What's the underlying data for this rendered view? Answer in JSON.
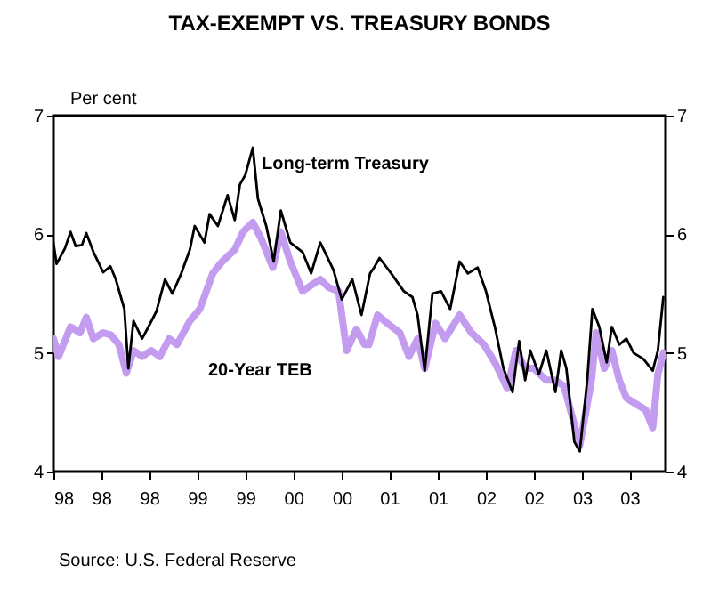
{
  "chart_data": {
    "type": "line",
    "title": "TAX-EXEMPT VS. TREASURY BONDS",
    "ylabel": "Per cent",
    "annotations": [
      "Source: U.S. Federal Reserve"
    ],
    "legend": false,
    "grid": false,
    "xlim": [
      "1998-01-01",
      "2003-11-11"
    ],
    "ylim": [
      4,
      7
    ],
    "yticks": [
      4,
      5,
      6,
      7
    ],
    "y2lim": [
      4,
      7
    ],
    "y2ticks": [
      4,
      5,
      6,
      7
    ],
    "xticks": [
      {
        "value": "1998-01-01",
        "label": "98"
      },
      {
        "value": "1998-06-17",
        "label": "98"
      },
      {
        "value": "1998-12-02",
        "label": "98"
      },
      {
        "value": "1999-05-18",
        "label": "99"
      },
      {
        "value": "1999-11-03",
        "label": "99"
      },
      {
        "value": "2000-04-19",
        "label": "00"
      },
      {
        "value": "2000-10-05",
        "label": "00"
      },
      {
        "value": "2001-03-20",
        "label": "01"
      },
      {
        "value": "2001-09-06",
        "label": "01"
      },
      {
        "value": "2002-02-21",
        "label": "02"
      },
      {
        "value": "2002-08-07",
        "label": "02"
      },
      {
        "value": "2003-01-23",
        "label": "03"
      },
      {
        "value": "2003-07-08",
        "label": "03"
      }
    ],
    "series": [
      {
        "name": "20-Year TEB",
        "color": "#c39cf0",
        "x": [
          "1998-01-01",
          "1998-01-19",
          "1998-03-02",
          "1998-04-04",
          "1998-04-26",
          "1998-05-21",
          "1998-06-24",
          "1998-07-22",
          "1998-08-18",
          "1998-09-13",
          "1998-10-08",
          "1998-11-07",
          "1998-12-09",
          "1999-01-08",
          "1999-02-10",
          "1999-03-09",
          "1999-04-23",
          "1999-05-28",
          "1999-07-12",
          "1999-08-14",
          "1999-09-27",
          "1999-10-26",
          "1999-11-29",
          "1999-12-27",
          "2000-02-07",
          "2000-03-06",
          "2000-04-08",
          "2000-05-21",
          "2000-06-20",
          "2000-07-22",
          "2000-08-21",
          "2000-09-24",
          "2000-10-22",
          "2000-11-25",
          "2000-12-24",
          "2001-01-08",
          "2001-02-07",
          "2001-03-13",
          "2001-04-26",
          "2001-05-28",
          "2001-06-27",
          "2001-07-22",
          "2001-08-29",
          "2001-10-01",
          "2001-11-21",
          "2002-01-01",
          "2002-02-14",
          "2002-03-24",
          "2002-05-07",
          "2002-06-06",
          "2002-07-08",
          "2002-08-07",
          "2002-09-20",
          "2002-10-22",
          "2002-11-21",
          "2002-12-24",
          "2003-01-15",
          "2003-02-25",
          "2003-03-13",
          "2003-04-11",
          "2003-05-07",
          "2003-06-02",
          "2003-06-27",
          "2003-07-30",
          "2003-09-02",
          "2003-09-27",
          "2003-10-15",
          "2003-11-03"
        ],
        "values": [
          5.12,
          4.97,
          5.22,
          5.17,
          5.3,
          5.12,
          5.17,
          5.15,
          5.07,
          4.83,
          5.02,
          4.97,
          5.02,
          4.97,
          5.12,
          5.07,
          5.27,
          5.37,
          5.67,
          5.77,
          5.87,
          6.02,
          6.1,
          5.97,
          5.72,
          6.02,
          5.77,
          5.52,
          5.57,
          5.62,
          5.55,
          5.52,
          5.02,
          5.2,
          5.07,
          5.07,
          5.32,
          5.25,
          5.17,
          4.97,
          5.12,
          4.87,
          5.25,
          5.12,
          5.32,
          5.17,
          5.07,
          4.92,
          4.7,
          5.02,
          4.87,
          4.87,
          4.77,
          4.77,
          4.72,
          4.42,
          4.22,
          4.77,
          5.17,
          4.87,
          5.02,
          4.77,
          4.62,
          4.57,
          4.52,
          4.37,
          4.82,
          5.0
        ]
      },
      {
        "name": "Long-term Treasury",
        "color": "#000000",
        "x": [
          "1998-01-01",
          "1998-01-12",
          "1998-02-10",
          "1998-03-02",
          "1998-03-20",
          "1998-04-11",
          "1998-04-26",
          "1998-05-21",
          "1998-06-24",
          "1998-07-19",
          "1998-08-07",
          "1998-09-06",
          "1998-09-20",
          "1998-10-08",
          "1998-11-07",
          "1998-11-25",
          "1998-12-27",
          "1999-01-26",
          "1999-02-21",
          "1999-03-24",
          "1999-04-23",
          "1999-05-10",
          "1999-06-13",
          "1999-07-01",
          "1999-07-30",
          "1999-09-02",
          "1999-09-27",
          "1999-10-15",
          "1999-11-03",
          "1999-11-29",
          "1999-12-17",
          "2000-01-15",
          "2000-02-10",
          "2000-03-06",
          "2000-04-08",
          "2000-05-21",
          "2000-06-20",
          "2000-07-22",
          "2000-09-06",
          "2000-10-05",
          "2000-11-11",
          "2000-12-13",
          "2001-01-12",
          "2001-01-26",
          "2001-02-14",
          "2001-03-27",
          "2001-05-10",
          "2001-06-09",
          "2001-06-27",
          "2001-07-22",
          "2001-08-18",
          "2001-09-17",
          "2001-10-19",
          "2001-11-21",
          "2001-12-20",
          "2002-01-23",
          "2002-02-21",
          "2002-03-24",
          "2002-04-23",
          "2002-05-25",
          "2002-06-17",
          "2002-07-08",
          "2002-07-26",
          "2002-08-25",
          "2002-09-20",
          "2002-10-22",
          "2002-11-11",
          "2002-11-29",
          "2002-12-27",
          "2003-01-15",
          "2003-02-10",
          "2003-02-28",
          "2003-03-24",
          "2003-04-19",
          "2003-05-07",
          "2003-06-02",
          "2003-06-27",
          "2003-07-22",
          "2003-08-25",
          "2003-09-27",
          "2003-10-15",
          "2003-11-03"
        ],
        "values": [
          5.93,
          5.75,
          5.88,
          6.02,
          5.9,
          5.91,
          6.01,
          5.85,
          5.68,
          5.73,
          5.62,
          5.37,
          4.87,
          5.27,
          5.12,
          5.2,
          5.35,
          5.62,
          5.5,
          5.67,
          5.87,
          6.07,
          5.93,
          6.17,
          6.07,
          6.33,
          6.12,
          6.42,
          6.5,
          6.73,
          6.3,
          6.07,
          5.77,
          6.2,
          5.93,
          5.85,
          5.67,
          5.93,
          5.7,
          5.45,
          5.62,
          5.32,
          5.67,
          5.72,
          5.8,
          5.67,
          5.52,
          5.47,
          5.32,
          4.85,
          5.5,
          5.52,
          5.37,
          5.77,
          5.67,
          5.72,
          5.52,
          5.22,
          4.87,
          4.67,
          5.1,
          4.77,
          5.02,
          4.82,
          5.02,
          4.67,
          5.02,
          4.87,
          4.25,
          4.17,
          4.77,
          5.37,
          5.22,
          4.92,
          5.22,
          5.07,
          5.12,
          5.0,
          4.95,
          4.85,
          5.02,
          5.47
        ]
      }
    ]
  }
}
